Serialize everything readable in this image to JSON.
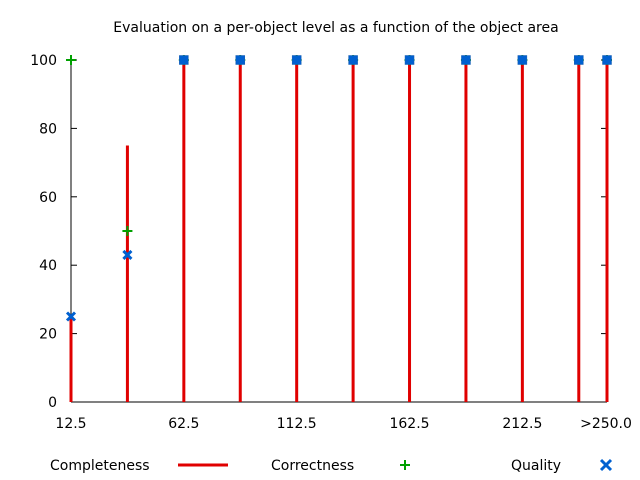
{
  "chart_data": {
    "type": "line",
    "title": "Evaluation on a per-object level as a function of the object area",
    "xlabel": "",
    "ylabel": "",
    "x": [
      12.5,
      37.5,
      62.5,
      87.5,
      112.5,
      137.5,
      162.5,
      187.5,
      212.5,
      237.5,
      250.0
    ],
    "xlim": [
      12.5,
      250.0
    ],
    "ylim": [
      0,
      100
    ],
    "x_ticks": [
      {
        "value": 12.5,
        "label": "12.5"
      },
      {
        "value": 62.5,
        "label": "62.5"
      },
      {
        "value": 112.5,
        "label": "112.5"
      },
      {
        "value": 162.5,
        "label": "162.5"
      },
      {
        "value": 212.5,
        "label": "212.5"
      },
      {
        "value": 250.0,
        "label": ">250.0"
      }
    ],
    "y_ticks": [
      0,
      20,
      40,
      60,
      80,
      100
    ],
    "grid": false,
    "legend_position": "bottom",
    "series": [
      {
        "name": "Completeness",
        "style": "impulses",
        "color": "#e00000",
        "values": [
          25,
          75,
          100,
          100,
          100,
          100,
          100,
          100,
          100,
          100,
          100
        ]
      },
      {
        "name": "Correctness",
        "style": "plus-markers",
        "color": "#00a000",
        "values": [
          100,
          50,
          100,
          100,
          100,
          100,
          100,
          100,
          100,
          100,
          100
        ]
      },
      {
        "name": "Quality",
        "style": "x-markers",
        "color": "#0060d0",
        "values": [
          25,
          43,
          100,
          100,
          100,
          100,
          100,
          100,
          100,
          100,
          100
        ]
      }
    ]
  }
}
